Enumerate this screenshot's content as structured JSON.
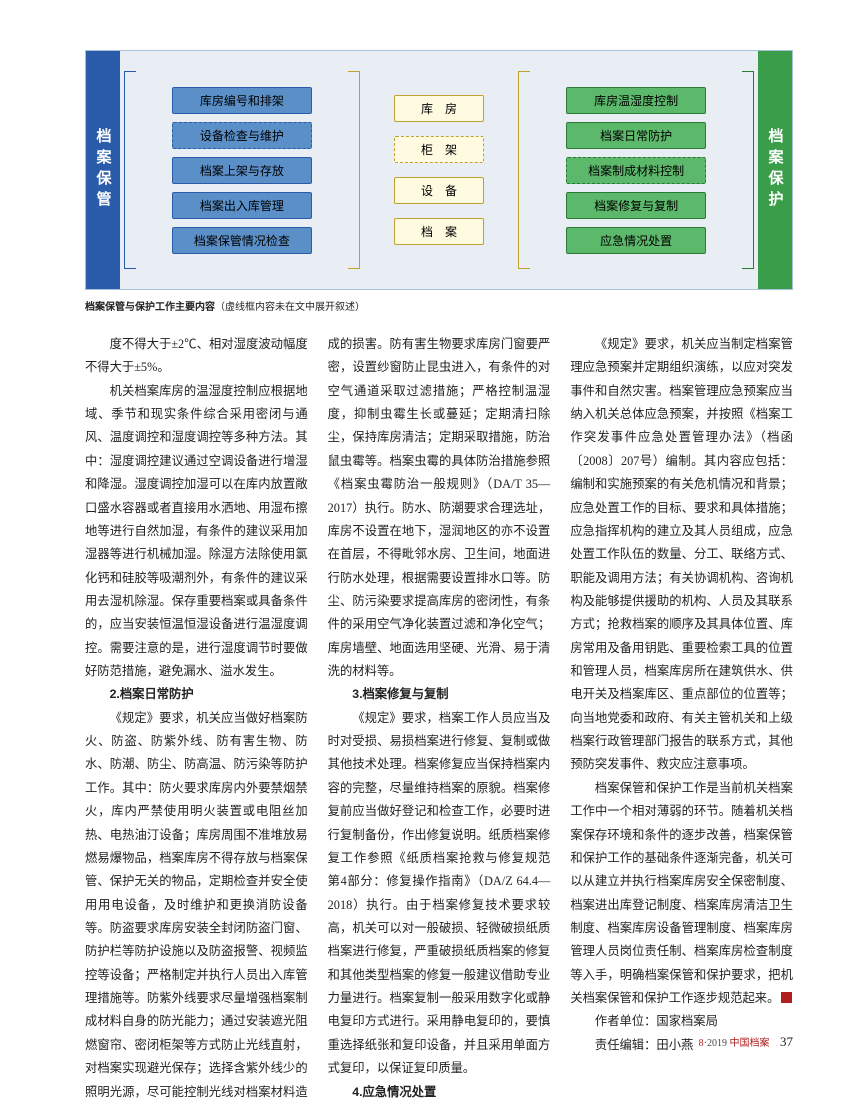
{
  "diagram": {
    "left_band": "档案保管",
    "right_band": "档案保护",
    "left_boxes": [
      {
        "label": "库房编号和排架",
        "style": "blue"
      },
      {
        "label": "设备检查与维护",
        "style": "blue dashed"
      },
      {
        "label": "档案上架与存放",
        "style": "blue"
      },
      {
        "label": "档案出入库管理",
        "style": "blue"
      },
      {
        "label": "档案保管情况检查",
        "style": "blue"
      }
    ],
    "center_boxes": [
      {
        "label": "库　房",
        "style": "yellow"
      },
      {
        "label": "柜　架",
        "style": "yellow dashed"
      },
      {
        "label": "设　备",
        "style": "yellow"
      },
      {
        "label": "档　案",
        "style": "yellow"
      }
    ],
    "right_boxes": [
      {
        "label": "库房温湿度控制",
        "style": "green"
      },
      {
        "label": "档案日常防护",
        "style": "green"
      },
      {
        "label": "档案制成材料控制",
        "style": "green dashed"
      },
      {
        "label": "档案修复与复制",
        "style": "green"
      },
      {
        "label": "应急情况处置",
        "style": "green"
      }
    ]
  },
  "caption_bold": "档案保管与保护工作主要内容",
  "caption_note": "（虚线框内容未在文中展开叙述）",
  "paragraphs": [
    {
      "t": "p",
      "v": "度不得大于±2℃、相对湿度波动幅度不得大于±5%。"
    },
    {
      "t": "p",
      "v": "机关档案库房的温湿度控制应根据地域、季节和现实条件综合采用密闭与通风、温度调控和湿度调控等多种方法。其中：湿度调控建议通过空调设备进行增湿和降湿。湿度调控加湿可以在库内放置敞口盛水容器或者直接用水洒地、用湿布擦地等进行自然加湿，有条件的建议采用加湿器等进行机械加湿。除湿方法除使用氯化钙和硅胶等吸潮剂外，有条件的建议采用去湿机除湿。保存重要档案或具备条件的，应当安装恒温恒湿设备进行温湿度调控。需要注意的是，进行湿度调节时要做好防范措施，避免漏水、溢水发生。"
    },
    {
      "t": "h",
      "v": "2.档案日常防护"
    },
    {
      "t": "p",
      "v": "《规定》要求，机关应当做好档案防火、防盗、防紫外线、防有害生物、防水、防潮、防尘、防高温、防污染等防护工作。其中：防火要求库房内外要禁烟禁火，库内严禁使用明火装置或电阻丝加热、电热油汀设备；库房周围不准堆放易燃易爆物品，档案库房不得存放与档案保管、保护无关的物品，定期检查并安全使用用电设备，及时维护和更换消防设备等。防盗要求库房安装全封闭防盗门窗、防护栏等防护设施以及防盗报警、视频监控等设备；严格制定并执行人员出入库管理措施等。防紫外线要求尽量增强档案制成材料自身的防光能力；通过安装遮光阻燃窗帘、密闭柜架等方式防止光线直射，对档案实现避光保存；选择含紫外线少的照明光源，尽可能控制光线对档案材料造成的损害。防有害生物要求库房门窗要严密，设置纱窗防止昆虫进入，有条件的对空气通道采取过滤措施；严格控制温湿度，抑制虫霉生长或蔓延；定期清扫除尘，保持库房清洁；定期采取措施，防治鼠虫霉等。档案虫霉的具体防治措施参照《档案虫霉防治一般规则》（DA/T 35—2017）执行。防水、防潮要求合理选址，库房不设置在地下，湿润地区的亦不设置在首层，不得毗邻水房、卫生间，地面进行防水处理，根据需要设置排水口等。防尘、防污染要求提高库房的密闭性，有条件的采用空气净化装置过滤和净化空气；库房墙壁、地面选用坚硬、光滑、易于清洗的材料等。"
    },
    {
      "t": "h",
      "v": "3.档案修复与复制"
    },
    {
      "t": "p",
      "v": "《规定》要求，档案工作人员应当及时对受损、易损档案进行修复、复制或做其他技术处理。档案修复应当保持档案内容的完整，尽量维持档案的原貌。档案修复前应当做好登记和检查工作，必要时进行复制备份，作出修复说明。纸质档案修复工作参照《纸质档案抢救与修复规范 第4部分：修复操作指南》（DA/Z 64.4—2018）执行。由于档案修复技术要求较高，机关可以对一般破损、轻微破损纸质档案进行修复，严重破损纸质档案的修复和其他类型档案的修复一般建议借助专业力量进行。档案复制一般采用数字化或静电复印方式进行。采用静电复印的，要慎重选择纸张和复印设备，并且采用单面方式复印，以保证复印质量。"
    },
    {
      "t": "h",
      "v": "4.应急情况处置"
    },
    {
      "t": "p",
      "v": "《规定》要求，机关应当制定档案管理应急预案并定期组织演练，以应对突发事件和自然灾害。档案管理应急预案应当纳入机关总体应急预案，并按照《档案工作突发事件应急处置管理办法》（档函〔2008〕207号）编制。其内容应包括：编制和实施预案的有关危机情况和背景；应急处置工作的目标、要求和具体措施；应急指挥机构的建立及其人员组成，应急处置工作队伍的数量、分工、联络方式、职能及调用方法；有关协调机构、咨询机构及能够提供援助的机构、人员及其联系方式；抢救档案的顺序及其具体位置、库房常用及备用钥匙、重要检索工具的位置和管理人员，档案库房所在建筑供水、供电开关及档案库区、重点部位的位置等；向当地党委和政府、有关主管机关和上级档案行政管理部门报告的联系方式，其他预防突发事件、救灾应注意事项。"
    },
    {
      "t": "p",
      "v": "档案保管和保护工作是当前机关档案工作中一个相对薄弱的环节。随着机关档案保存环境和条件的逐步改善，档案保管和保护工作的基础条件逐渐完备，机关可以从建立并执行档案库房安全保密制度、档案进出库登记制度、档案库房清洁卫生制度、档案库房设备管理制度、档案库房管理人员岗位责任制、档案库房检查制度等入手，明确档案保管和保护要求，把机关档案保管和保护工作逐步规范起来。"
    }
  ],
  "credit_author": "作者单位：国家档案局",
  "credit_editor": "责任编辑：田小燕",
  "footer_issue": "8",
  "footer_year": "·2019",
  "footer_brand": "中国档案",
  "footer_page": "37"
}
